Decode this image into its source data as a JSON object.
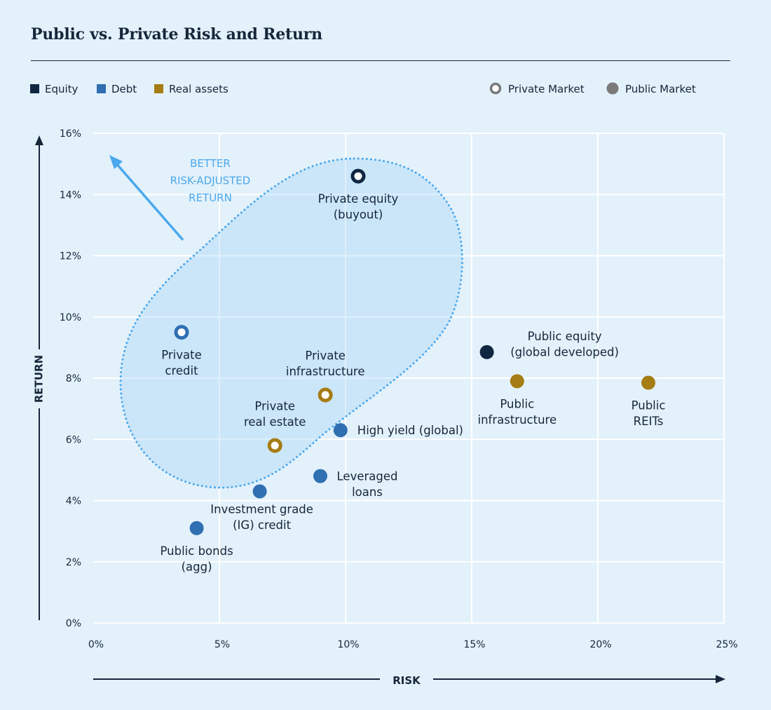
{
  "title": "Public vs. Private Risk and Return",
  "colors": {
    "equity": "#0f2740",
    "debt": "#2f6fb2",
    "real_assets": "#a67d14",
    "private_ring_fill": "#ffffff",
    "public_legend": "#7a7a7a",
    "highlight": "#4aa8ec",
    "axis": "#17263a",
    "grid": "#ffffff",
    "background": "#e3f1fb"
  },
  "legend": {
    "categories": [
      {
        "key": "equity",
        "label": "Equity"
      },
      {
        "key": "debt",
        "label": "Debt"
      },
      {
        "key": "real_assets",
        "label": "Real assets"
      }
    ],
    "markers": [
      {
        "key": "private",
        "label": "Private Market"
      },
      {
        "key": "public",
        "label": "Public Market"
      }
    ]
  },
  "chart_data": {
    "type": "scatter",
    "title": "Public vs. Private Risk and Return",
    "xlabel": "RISK",
    "ylabel": "RETURN",
    "xlim": [
      0,
      25
    ],
    "ylim": [
      0,
      16
    ],
    "xticks": [
      0,
      5,
      10,
      15,
      20,
      25
    ],
    "yticks": [
      0,
      2,
      4,
      6,
      8,
      10,
      12,
      14,
      16
    ],
    "x_tick_labels": [
      "0%",
      "5%",
      "10%",
      "15%",
      "20%",
      "25%"
    ],
    "y_tick_labels": [
      "0%",
      "2%",
      "4%",
      "6%",
      "8%",
      "10%",
      "12%",
      "14%",
      "16%"
    ],
    "grid": true,
    "annotation": [
      "BETTER",
      "RISK-ADJUSTED",
      "RETURN"
    ],
    "points": [
      {
        "label": [
          "Private equity",
          "(buyout)"
        ],
        "x": 10.5,
        "y": 14.6,
        "category": "equity",
        "market": "private",
        "label_pos": "below"
      },
      {
        "label": [
          "Private",
          "credit"
        ],
        "x": 3.5,
        "y": 9.5,
        "category": "debt",
        "market": "private",
        "label_pos": "below"
      },
      {
        "label": [
          "Private",
          "infrastructure"
        ],
        "x": 9.2,
        "y": 7.45,
        "category": "real_assets",
        "market": "private",
        "label_pos": "above"
      },
      {
        "label": [
          "Private",
          "real estate"
        ],
        "x": 7.2,
        "y": 5.8,
        "category": "real_assets",
        "market": "private",
        "label_pos": "above"
      },
      {
        "label": [
          "Public equity",
          "(global developed)"
        ],
        "x": 15.6,
        "y": 8.85,
        "category": "equity",
        "market": "public",
        "label_pos": "above-right"
      },
      {
        "label": [
          "Public",
          "infrastructure"
        ],
        "x": 16.8,
        "y": 7.9,
        "category": "real_assets",
        "market": "public",
        "label_pos": "below"
      },
      {
        "label": [
          "Public",
          "REITs"
        ],
        "x": 22.0,
        "y": 7.85,
        "category": "real_assets",
        "market": "public",
        "label_pos": "below"
      },
      {
        "label": [
          "High yield (global)"
        ],
        "x": 9.8,
        "y": 6.3,
        "category": "debt",
        "market": "public",
        "label_pos": "right"
      },
      {
        "label": [
          "Leveraged",
          "loans"
        ],
        "x": 9.0,
        "y": 4.8,
        "category": "debt",
        "market": "public",
        "label_pos": "right"
      },
      {
        "label": [
          "Investment grade",
          "(IG) credit"
        ],
        "x": 6.6,
        "y": 4.3,
        "category": "debt",
        "market": "public",
        "label_pos": "below-right"
      },
      {
        "label": [
          "Public bonds",
          "(agg)"
        ],
        "x": 4.1,
        "y": 3.1,
        "category": "debt",
        "market": "public",
        "label_pos": "below"
      }
    ]
  }
}
